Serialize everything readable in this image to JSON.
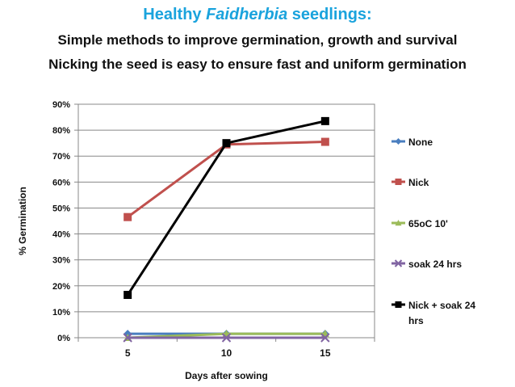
{
  "header": {
    "title_prefix": "Healthy ",
    "title_italic": "Faidherbia",
    "title_suffix": " seedlings:",
    "subtitle1": "Simple methods to improve germination, growth and survival",
    "subtitle2": "Nicking the seed is easy to ensure fast and uniform germination"
  },
  "chart_data": {
    "type": "line",
    "x": [
      5,
      10,
      15
    ],
    "xlabel": "Days after sowing",
    "ylabel": "% Germination",
    "ylim": [
      0,
      0.9
    ],
    "yticks": [
      "0%",
      "10%",
      "20%",
      "30%",
      "40%",
      "50%",
      "60%",
      "70%",
      "80%",
      "90%"
    ],
    "grid": true,
    "legend_position": "right",
    "series": [
      {
        "name": "None",
        "values": [
          0.015,
          0.015,
          0.015
        ],
        "color": "#4a7ebf",
        "marker": "diamond"
      },
      {
        "name": "Nick",
        "values": [
          0.465,
          0.745,
          0.755
        ],
        "color": "#c0504d",
        "marker": "square"
      },
      {
        "name": "65oC 10'",
        "values": [
          0.0,
          0.015,
          0.015
        ],
        "color": "#9bbb59",
        "marker": "triangle"
      },
      {
        "name": "soak 24 hrs",
        "values": [
          0.0,
          0.0,
          0.0
        ],
        "color": "#8064a2",
        "marker": "x"
      },
      {
        "name": "Nick + soak 24 hrs",
        "legend_lines": [
          "Nick + soak 24",
          "hrs"
        ],
        "values": [
          0.165,
          0.75,
          0.835
        ],
        "color": "#000000",
        "marker": "square"
      }
    ]
  }
}
